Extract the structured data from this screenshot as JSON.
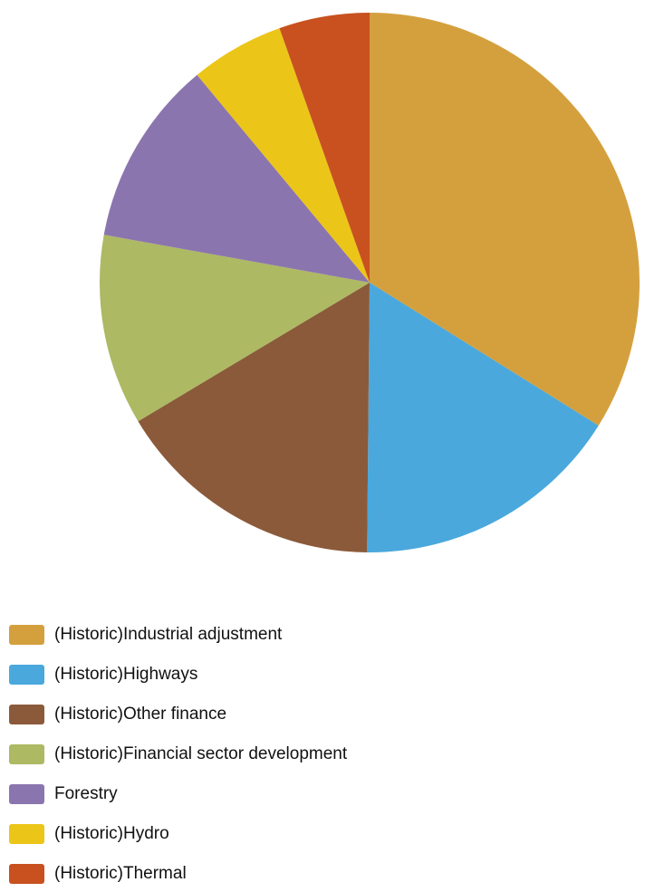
{
  "chart_data": {
    "type": "pie",
    "title": "",
    "start_angle": "12 o'clock",
    "direction": "clockwise",
    "legend_position": "bottom-left",
    "slices": [
      {
        "label": "(Historic)Industrial adjustment",
        "value": 34.4,
        "color": "#d4a03e"
      },
      {
        "label": "(Historic)Highways",
        "value": 16.5,
        "color": "#4aa8dc"
      },
      {
        "label": "(Historic)Other finance",
        "value": 16.5,
        "color": "#8b5a3a"
      },
      {
        "label": "(Historic)Financial sector development",
        "value": 11.6,
        "color": "#adb963"
      },
      {
        "label": "Forestry",
        "value": 11.3,
        "color": "#8b75ae"
      },
      {
        "label": "(Historic)Hydro",
        "value": 5.7,
        "color": "#ecc519"
      },
      {
        "label": "(Historic)Thermal",
        "value": 5.5,
        "color": "#c8511f"
      }
    ]
  }
}
